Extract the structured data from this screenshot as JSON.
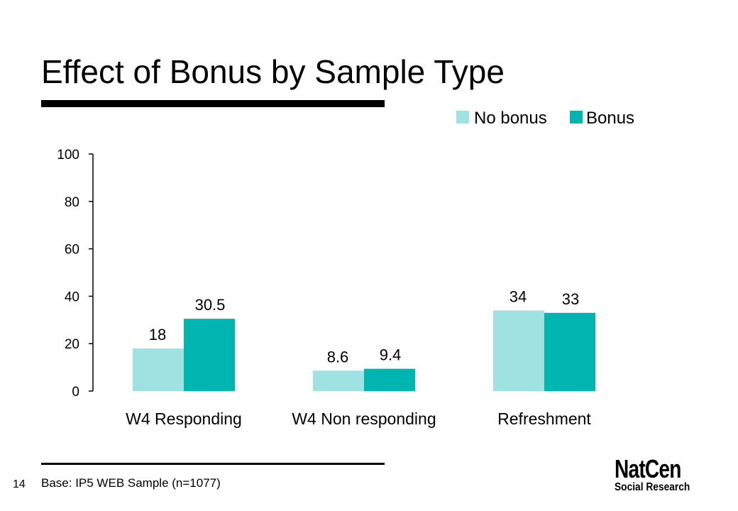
{
  "slide": {
    "title": "Effect of Bonus by Sample Type",
    "page_number": "14",
    "base_note": "Base: IP5 WEB Sample (n=1077)"
  },
  "logo": {
    "line1": "NatCen",
    "line2": "Social Research"
  },
  "colors": {
    "no_bonus": "#9fe2e1",
    "bonus": "#00b5b0"
  },
  "chart_data": {
    "type": "bar",
    "title": "",
    "xlabel": "",
    "ylabel": "",
    "categories": [
      "W4 Responding",
      "W4 Non responding",
      "Refreshment"
    ],
    "series": [
      {
        "name": "No bonus",
        "values": [
          18,
          8.6,
          34
        ],
        "labels": [
          "18",
          "8.6",
          "34"
        ]
      },
      {
        "name": "Bonus",
        "values": [
          30.5,
          9.4,
          33
        ],
        "labels": [
          "30.5",
          "9.4",
          "33"
        ]
      }
    ],
    "ylim": [
      0,
      100
    ],
    "yticks": [
      "0",
      "20",
      "40",
      "60",
      "80",
      "100"
    ],
    "grid": false,
    "legend": "top-right"
  }
}
